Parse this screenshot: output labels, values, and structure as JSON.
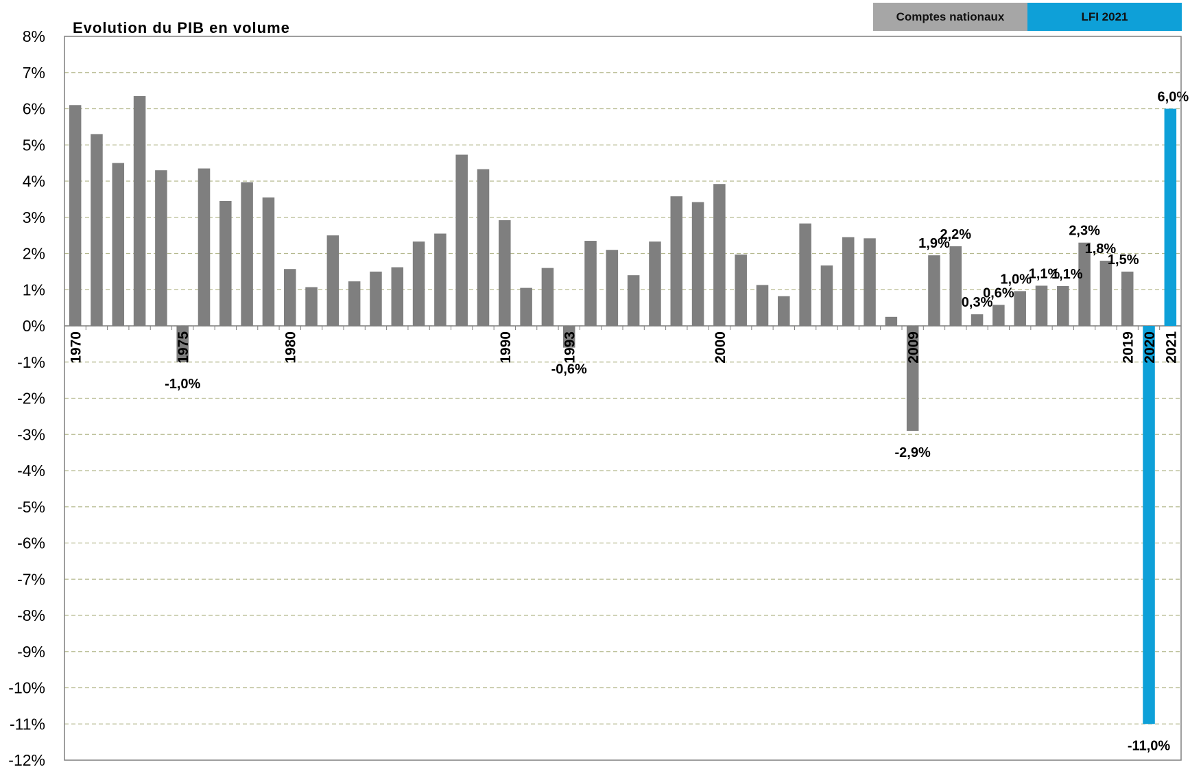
{
  "chart_data": {
    "type": "bar",
    "title": "Evolution du PIB en volume",
    "xlabel": "",
    "ylabel": "",
    "ylim": [
      -12,
      8
    ],
    "grid": true,
    "yticks": [
      8,
      7,
      6,
      5,
      4,
      3,
      2,
      1,
      0,
      -1,
      -2,
      -3,
      -4,
      -5,
      -6,
      -7,
      -8,
      -9,
      -10,
      -11,
      -12
    ],
    "ytick_labels": [
      "8%",
      "7%",
      "6%",
      "5%",
      "4%",
      "3%",
      "2%",
      "1%",
      "0%",
      "-1%",
      "-2%",
      "-3%",
      "-4%",
      "-5%",
      "-6%",
      "-7%",
      "-8%",
      "-9%",
      "-10%",
      "-11%",
      "-12%"
    ],
    "legend": {
      "placement": "top-right",
      "items": [
        {
          "label": "Comptes nationaux",
          "color": "#a6a6a6"
        },
        {
          "label": "LFI 2021",
          "color": "#0ea0d8"
        }
      ]
    },
    "colors": {
      "historical": "#7f7f7f",
      "forecast": "#0ea0d8"
    },
    "categories": [
      1970,
      1971,
      1972,
      1973,
      1974,
      1975,
      1976,
      1977,
      1978,
      1979,
      1980,
      1981,
      1982,
      1983,
      1984,
      1985,
      1986,
      1987,
      1988,
      1989,
      1990,
      1991,
      1992,
      1993,
      1994,
      1995,
      1996,
      1997,
      1998,
      1999,
      2000,
      2001,
      2002,
      2003,
      2004,
      2005,
      2006,
      2007,
      2008,
      2009,
      2010,
      2011,
      2012,
      2013,
      2014,
      2015,
      2016,
      2017,
      2018,
      2019,
      2020,
      2021
    ],
    "values": [
      6.1,
      5.3,
      4.5,
      6.35,
      4.3,
      -1.0,
      4.35,
      3.45,
      3.97,
      3.55,
      1.57,
      1.07,
      2.5,
      1.23,
      1.5,
      1.62,
      2.33,
      2.55,
      4.73,
      4.33,
      2.92,
      1.05,
      1.6,
      -0.6,
      2.35,
      2.1,
      1.4,
      2.33,
      3.58,
      3.42,
      3.92,
      1.97,
      1.13,
      0.82,
      2.83,
      1.67,
      2.45,
      2.42,
      0.25,
      -2.9,
      1.95,
      2.2,
      0.32,
      0.58,
      0.96,
      1.11,
      1.1,
      2.3,
      1.8,
      1.5,
      -11.0,
      6.0
    ],
    "forecast_years": [
      2020,
      2021
    ],
    "shown_year_labels": [
      1970,
      1975,
      1980,
      1990,
      1993,
      2000,
      2009,
      2019,
      2020,
      2021
    ],
    "data_labels": [
      {
        "year": 1975,
        "text": "-1,0%"
      },
      {
        "year": 1993,
        "text": "-0,6%"
      },
      {
        "year": 2009,
        "text": "-2,9%"
      },
      {
        "year": 2010,
        "text": "1,9%"
      },
      {
        "year": 2011,
        "text": "2,2%"
      },
      {
        "year": 2012,
        "text": "0,3%"
      },
      {
        "year": 2013,
        "text": "0,6%"
      },
      {
        "year": 2014,
        "text": "1,0%"
      },
      {
        "year": 2015,
        "text": "1,1%"
      },
      {
        "year": 2016,
        "text": "1,1%"
      },
      {
        "year": 2017,
        "text": "2,3%"
      },
      {
        "year": 2018,
        "text": "1,8%"
      },
      {
        "year": 2019,
        "text": "1,5%"
      },
      {
        "year": 2020,
        "text": "-11,0%"
      },
      {
        "year": 2021,
        "text": "6,0%"
      }
    ]
  }
}
